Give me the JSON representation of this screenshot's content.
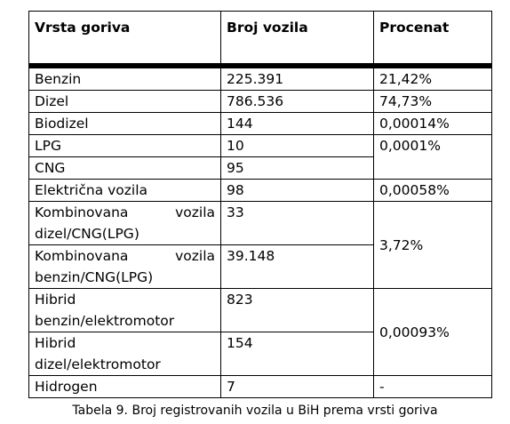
{
  "table": {
    "headers": [
      "Vrsta goriva",
      "Broj vozila",
      "Procenat"
    ],
    "rows": {
      "benzin": {
        "type": "Benzin",
        "count": "225.391",
        "percent": "21,42%"
      },
      "dizel": {
        "type": "Dizel",
        "count": "786.536",
        "percent": "74,73%"
      },
      "biodizel": {
        "type": "Biodizel",
        "count": "144",
        "percent": "0,00014%"
      },
      "lpg": {
        "type": "LPG",
        "count": "10",
        "percent": "0,0001%"
      },
      "cng": {
        "type": "CNG",
        "count": "95"
      },
      "elektricna": {
        "type": "Električna vozila",
        "count": "98",
        "percent": "0,00058%"
      },
      "komb_dizel": {
        "type_a": "Kombinovana",
        "type_b": "vozila",
        "type_line2": "dizel/CNG(LPG)",
        "count": "33"
      },
      "komb_benzin": {
        "type_a": "Kombinovana",
        "type_b": "vozila",
        "type_line2": "benzin/CNG(LPG)",
        "count": "39.148"
      },
      "komb_percent": "3,72%",
      "hibrid_benzin": {
        "type_line1": "Hibrid",
        "type_line2": "benzin/elektromotor",
        "count": "823"
      },
      "hibrid_dizel": {
        "type_line1": "Hibrid",
        "type_line2": "dizel/elektromotor",
        "count": "154"
      },
      "hibrid_percent": "0,00093%",
      "hidrogen": {
        "type": "Hidrogen",
        "count": "7",
        "percent": "-"
      }
    }
  },
  "caption": "Tabela 9. Broj registrovanih vozila u BiH prema vrsti goriva"
}
